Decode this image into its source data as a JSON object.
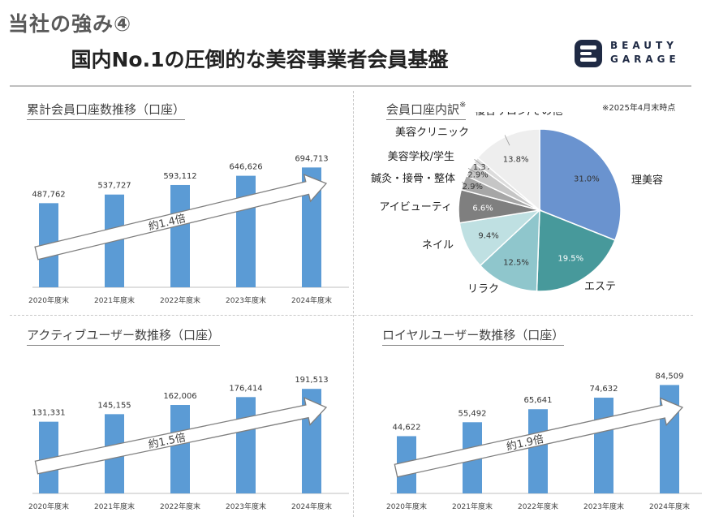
{
  "header": {
    "kicker": "当社の強み④",
    "headline": "国内No.1の圧倒的な美容事業者会員基盤",
    "logo_line1": "BEAUTY",
    "logo_line2": "GARAGE"
  },
  "chart_data": [
    {
      "type": "bar",
      "title": "累計会員口座数推移（口座）",
      "categories": [
        "2020年度末",
        "2021年度末",
        "2022年度末",
        "2023年度末",
        "2024年度末"
      ],
      "values": [
        487762,
        537727,
        593112,
        646626,
        694713
      ],
      "value_labels": [
        "487,762",
        "537,727",
        "593,112",
        "646,626",
        "694,713"
      ],
      "ylim": [
        0,
        800000
      ],
      "annotation": "約1.4倍",
      "color": "#5b9bd5"
    },
    {
      "type": "pie",
      "title": "会員口座内訳",
      "title_mark": "※",
      "note": "※2025年4月末時点",
      "slices": [
        {
          "name": "理美容",
          "value": 31.0,
          "label": "31.0%",
          "color": "#6a93cf"
        },
        {
          "name": "エステ",
          "value": 19.5,
          "label": "19.5%",
          "color": "#47999b"
        },
        {
          "name": "リラク",
          "value": 12.5,
          "label": "12.5%",
          "color": "#8fc6cc"
        },
        {
          "name": "ネイル",
          "value": 9.4,
          "label": "9.4%",
          "color": "#bfe0e2"
        },
        {
          "name": "アイビューティ",
          "value": 6.6,
          "label": "6.6%",
          "color": "#7f7f7f"
        },
        {
          "name": "鍼灸・接骨・整体",
          "value": 2.9,
          "label": "2.9%",
          "color": "#a6a6a6"
        },
        {
          "name": "美容学校/学生",
          "value": 2.9,
          "label": "2.9%",
          "color": "#c6c6c6"
        },
        {
          "name": "美容クリニック",
          "value": 1.3,
          "label": "1.3%",
          "color": "#dcdcdc"
        },
        {
          "name": "複合サロン/その他",
          "value": 13.8,
          "label": "13.8%",
          "color": "#eeeeee"
        }
      ]
    },
    {
      "type": "bar",
      "title": "アクティブユーザー数推移（口座）",
      "categories": [
        "2020年度末",
        "2021年度末",
        "2022年度末",
        "2023年度末",
        "2024年度末"
      ],
      "values": [
        131331,
        145155,
        162006,
        176414,
        191513
      ],
      "value_labels": [
        "131,331",
        "145,155",
        "162,006",
        "176,414",
        "191,513"
      ],
      "ylim": [
        0,
        220000
      ],
      "annotation": "約1.5倍",
      "color": "#5b9bd5"
    },
    {
      "type": "bar",
      "title": "ロイヤルユーザー数推移（口座）",
      "categories": [
        "2020年度末",
        "2021年度末",
        "2022年度末",
        "2023年度末",
        "2024年度末"
      ],
      "values": [
        44622,
        55492,
        65641,
        74632,
        84509
      ],
      "value_labels": [
        "44,622",
        "55,492",
        "65,641",
        "74,632",
        "84,509"
      ],
      "ylim": [
        0,
        93000
      ],
      "annotation": "約1.9倍",
      "color": "#5b9bd5"
    }
  ]
}
